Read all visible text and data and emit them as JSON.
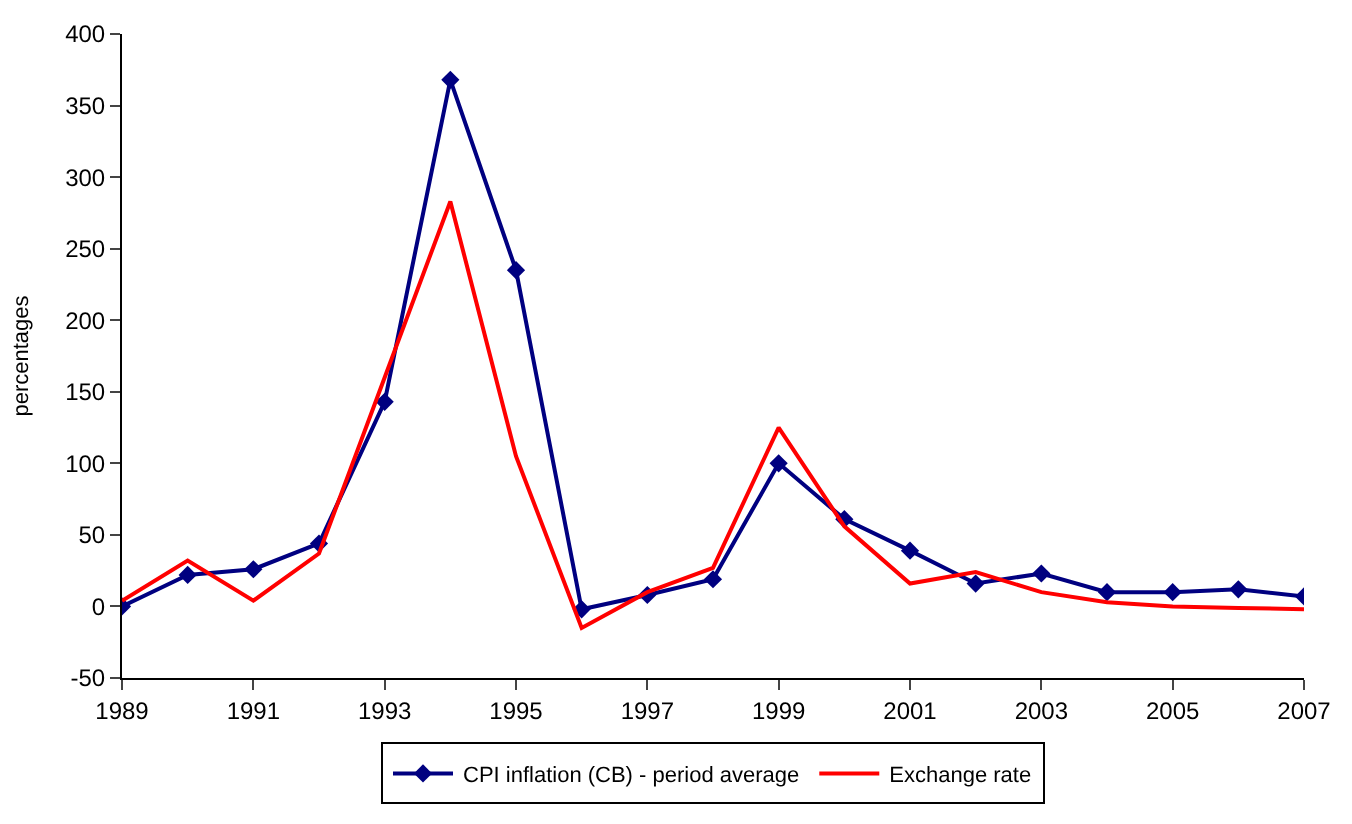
{
  "chart_data": {
    "type": "line",
    "ylabel": "percentages",
    "x": [
      1989,
      1990,
      1991,
      1992,
      1993,
      1994,
      1995,
      1996,
      1997,
      1998,
      1999,
      2000,
      2001,
      2002,
      2003,
      2004,
      2005,
      2006,
      2007
    ],
    "xlim": [
      1989,
      2007
    ],
    "xticks": [
      1989,
      1991,
      1993,
      1995,
      1997,
      1999,
      2001,
      2003,
      2005,
      2007
    ],
    "ylim": [
      -50,
      400
    ],
    "yticks": [
      -50,
      0,
      50,
      100,
      150,
      200,
      250,
      300,
      350,
      400
    ],
    "legend": "bottom",
    "series": [
      {
        "name": "CPI inflation (CB) - period average",
        "color": "#000080",
        "marker": "diamond",
        "values": [
          0,
          22,
          26,
          44,
          143,
          368,
          235,
          -2,
          8,
          19,
          100,
          61,
          39,
          16,
          23,
          10,
          10,
          12,
          7
        ]
      },
      {
        "name": "Exchange rate",
        "color": "#ff0000",
        "marker": "none",
        "values": [
          4,
          32,
          4,
          37,
          160,
          283,
          105,
          -15,
          10,
          27,
          125,
          56,
          16,
          24,
          10,
          3,
          0,
          -1,
          -2
        ]
      }
    ]
  }
}
